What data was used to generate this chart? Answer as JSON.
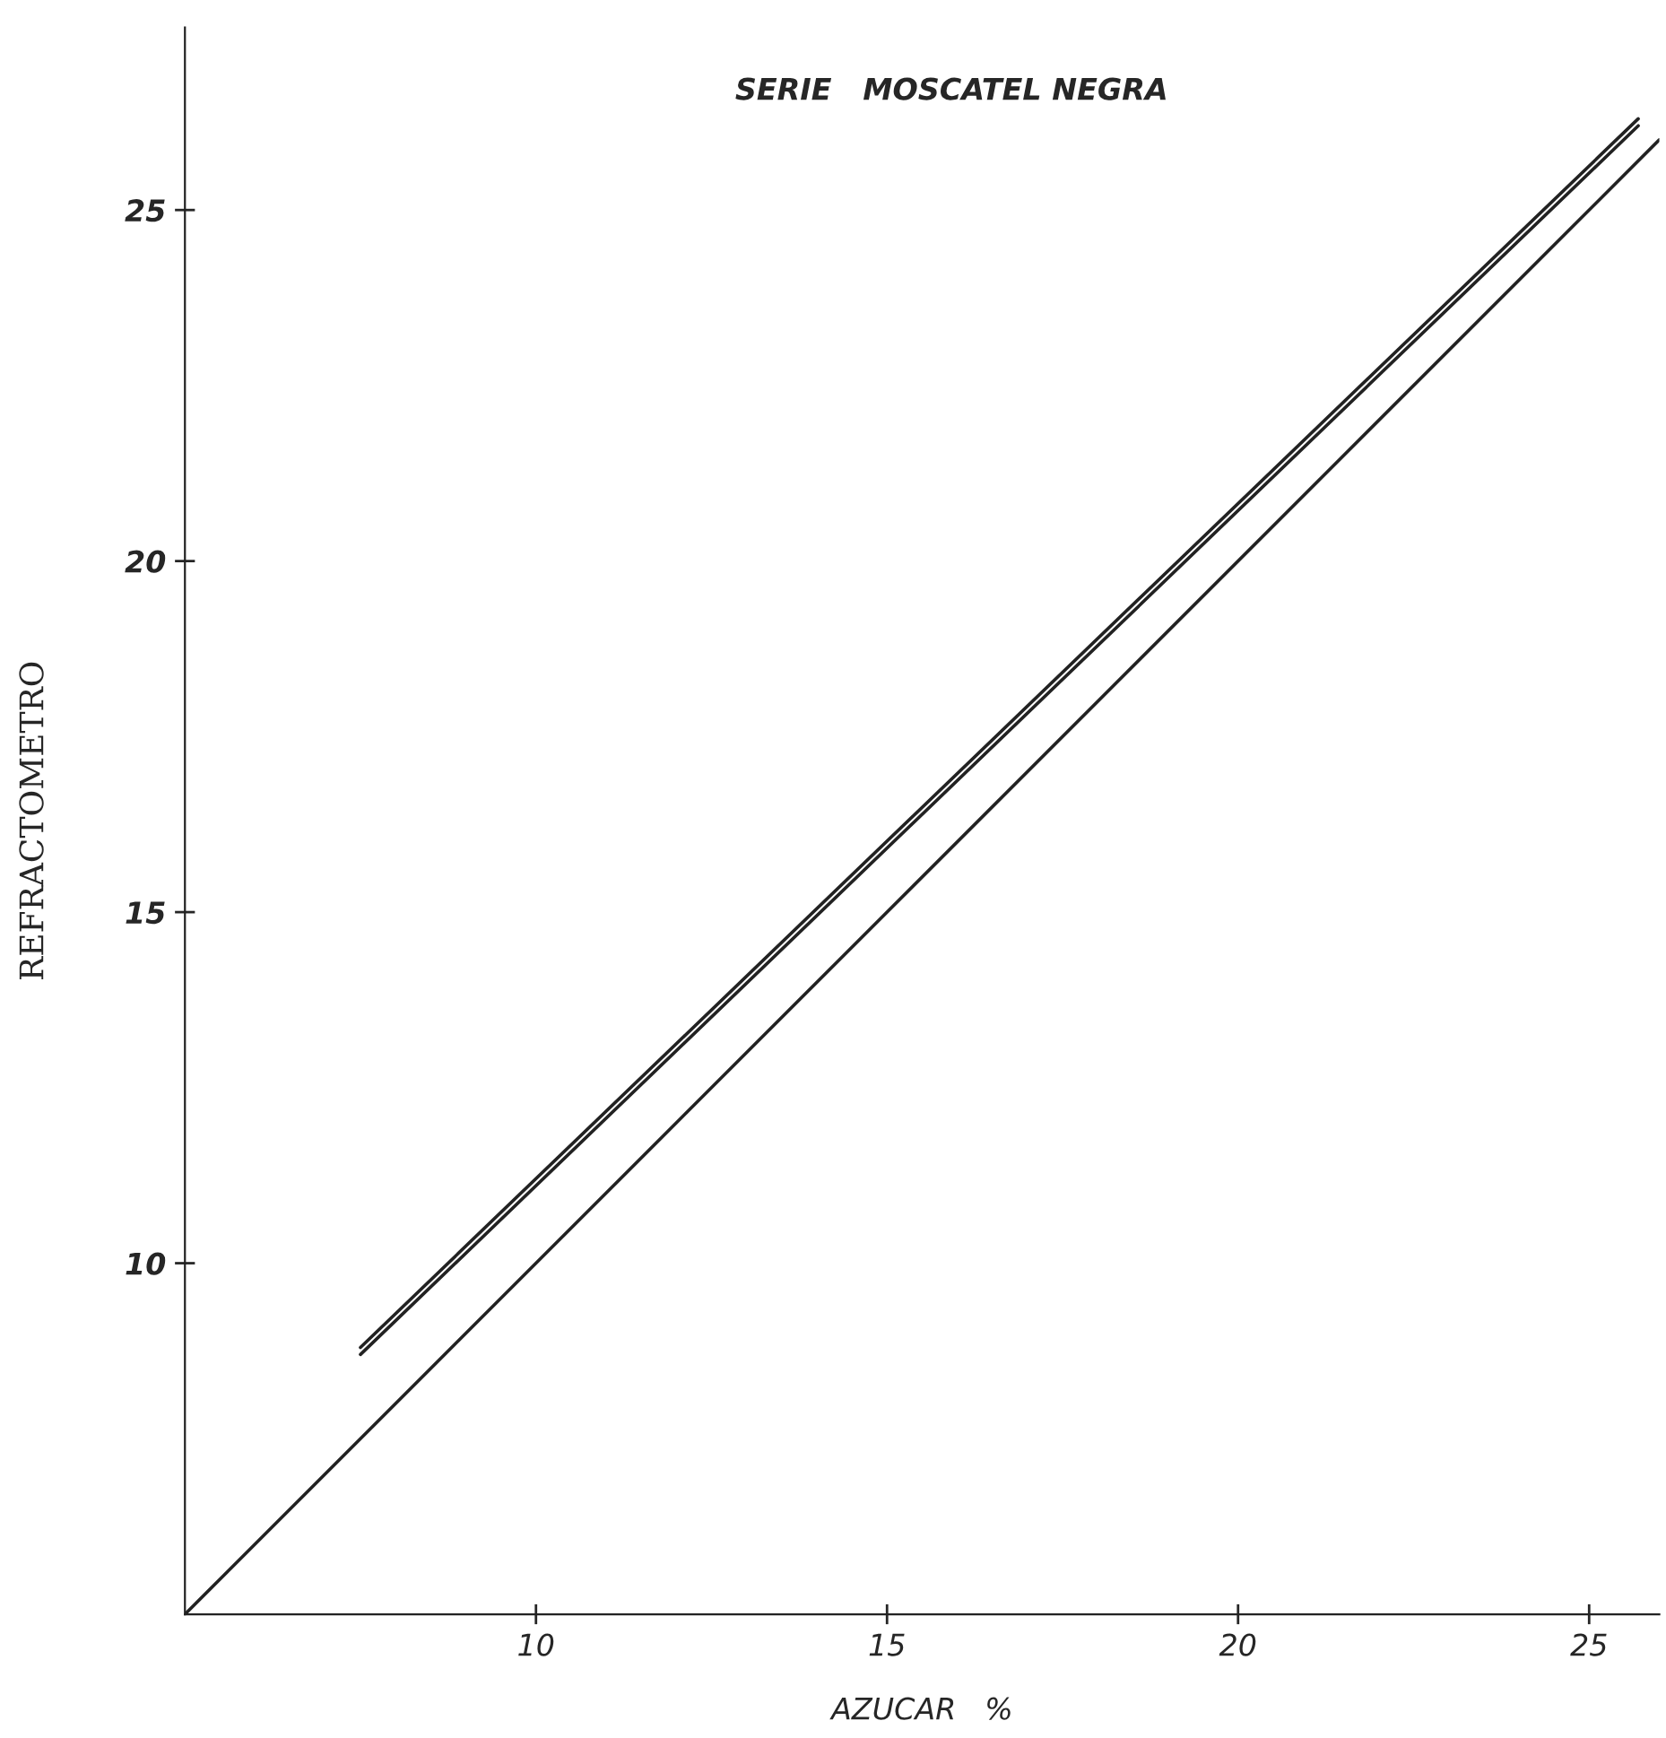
{
  "chart_data": {
    "type": "line",
    "title": "SERIE   MOSCATEL NEGRA",
    "xlabel": "AZUCAR   %",
    "ylabel": "REFRACTOMETRO",
    "series": [
      {
        "color": "#222222",
        "x": [
          5,
          26
        ],
        "values": [
          5,
          26
        ]
      },
      {
        "color": "#222222",
        "x": [
          7.5,
          25.7
        ],
        "values": [
          8.8,
          26.3
        ]
      },
      {
        "color": "#222222",
        "x": [
          7.5,
          25.7
        ],
        "values": [
          8.7,
          26.2
        ]
      }
    ],
    "xlim": [
      5,
      26
    ],
    "ylim": [
      5,
      27.6
    ],
    "xticks": [
      10,
      15,
      20,
      25
    ],
    "yticks": [
      10,
      15,
      20,
      25
    ],
    "grid": false,
    "legend": false,
    "marker": "none",
    "line_style": "solid"
  }
}
